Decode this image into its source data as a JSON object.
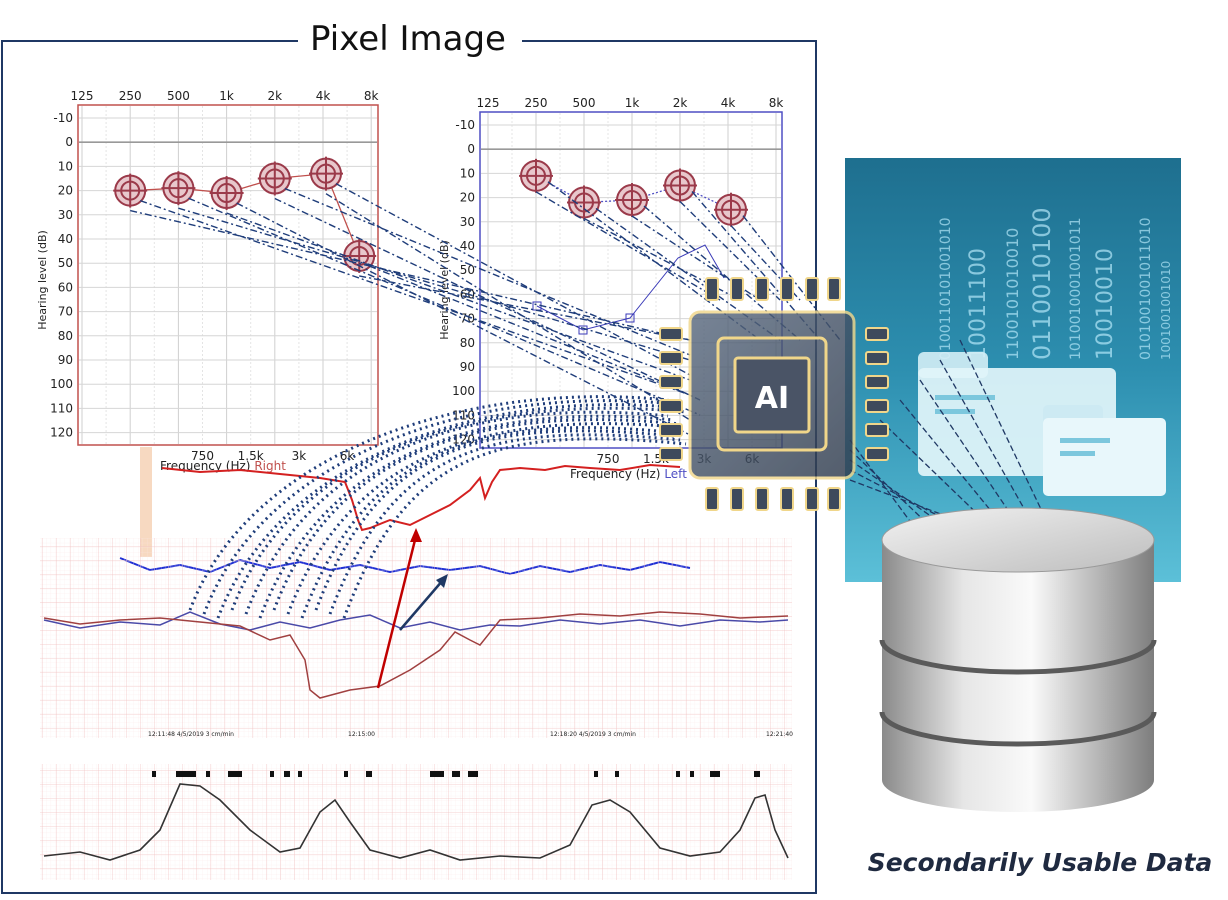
{
  "frame": {
    "title": "Pixel Image"
  },
  "caption": "Secondarily Usable Data",
  "ai_chip": {
    "label": "AI"
  },
  "audiogram_right": {
    "top_ticks": [
      "125",
      "250",
      "500",
      "1k",
      "2k",
      "4k",
      "8k"
    ],
    "bottom_ticks": [
      "750",
      "1.5k",
      "3k",
      "6k"
    ],
    "y_ticks": [
      "-10",
      "0",
      "10",
      "20",
      "30",
      "40",
      "50",
      "60",
      "70",
      "80",
      "90",
      "100",
      "110",
      "120"
    ],
    "ylabel": "Hearing level (dB)",
    "xlabel_prefix": "Frequency (Hz)",
    "xlabel_side": "Right",
    "side_color": "#c0504d",
    "points": [
      {
        "freq": "250",
        "db": 20
      },
      {
        "freq": "500",
        "db": 19
      },
      {
        "freq": "1k",
        "db": 21
      },
      {
        "freq": "2k",
        "db": 15
      },
      {
        "freq": "4k",
        "db": 13
      },
      {
        "freq": "8k",
        "db": 47
      }
    ]
  },
  "audiogram_left": {
    "top_ticks": [
      "125",
      "250",
      "500",
      "1k",
      "2k",
      "4k",
      "8k"
    ],
    "bottom_ticks": [
      "750",
      "1.5k",
      "3k",
      "6k"
    ],
    "y_ticks": [
      "-10",
      "0",
      "10",
      "20",
      "30",
      "40",
      "50",
      "60",
      "70",
      "80",
      "90",
      "100",
      "110",
      "120"
    ],
    "ylabel": "Hearing level (dB)",
    "xlabel_prefix": "Frequency (Hz)",
    "xlabel_side": "Left",
    "side_color": "#4f4fc4",
    "points": [
      {
        "freq": "250",
        "db": 11
      },
      {
        "freq": "500",
        "db": 22
      },
      {
        "freq": "1k",
        "db": 21
      },
      {
        "freq": "2k",
        "db": 15
      },
      {
        "freq": "4k",
        "db": 25
      }
    ]
  },
  "ctg_strip": {
    "timestamps": [
      "12:11:48  4/5/2019  3 cm/min",
      "12:15:00",
      "12:18:20  4/5/2019  3 cm/min",
      "12:21:40"
    ]
  },
  "colors": {
    "frame_border": "#1f3864",
    "dash_lines": "#1f3d7a",
    "red_trace": "#d42020",
    "blue_trace": "#1f2fd4",
    "chip_gold": "#e9c46a"
  }
}
